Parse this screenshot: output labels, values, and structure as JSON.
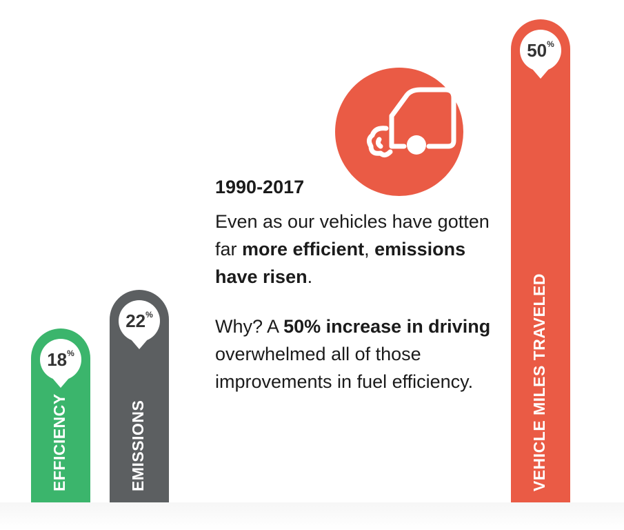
{
  "chart_data": {
    "type": "bar",
    "categories": [
      "EFFICIENCY",
      "EMISSIONS",
      "VEHICLE MILES TRAVELED"
    ],
    "values": [
      18,
      22,
      50
    ],
    "value_labels": [
      "18",
      "22",
      "50"
    ],
    "unit": "%",
    "colors": [
      "#3bb56c",
      "#5c5f61",
      "#ea5b45"
    ]
  },
  "text": {
    "year": "1990-2017",
    "para1_a": "Even as our vehicles have gotten far ",
    "para1_b": "more efficient",
    "para1_c": ", ",
    "para1_d": "emissions have risen",
    "para1_e": ".",
    "para2_a": "Why? A ",
    "para2_b": "50% increase in driving",
    "para2_c": " overwhelmed all of those improvements in fuel efficiency."
  },
  "icon": "car-exhaust-icon",
  "accent": "#ea5b45"
}
